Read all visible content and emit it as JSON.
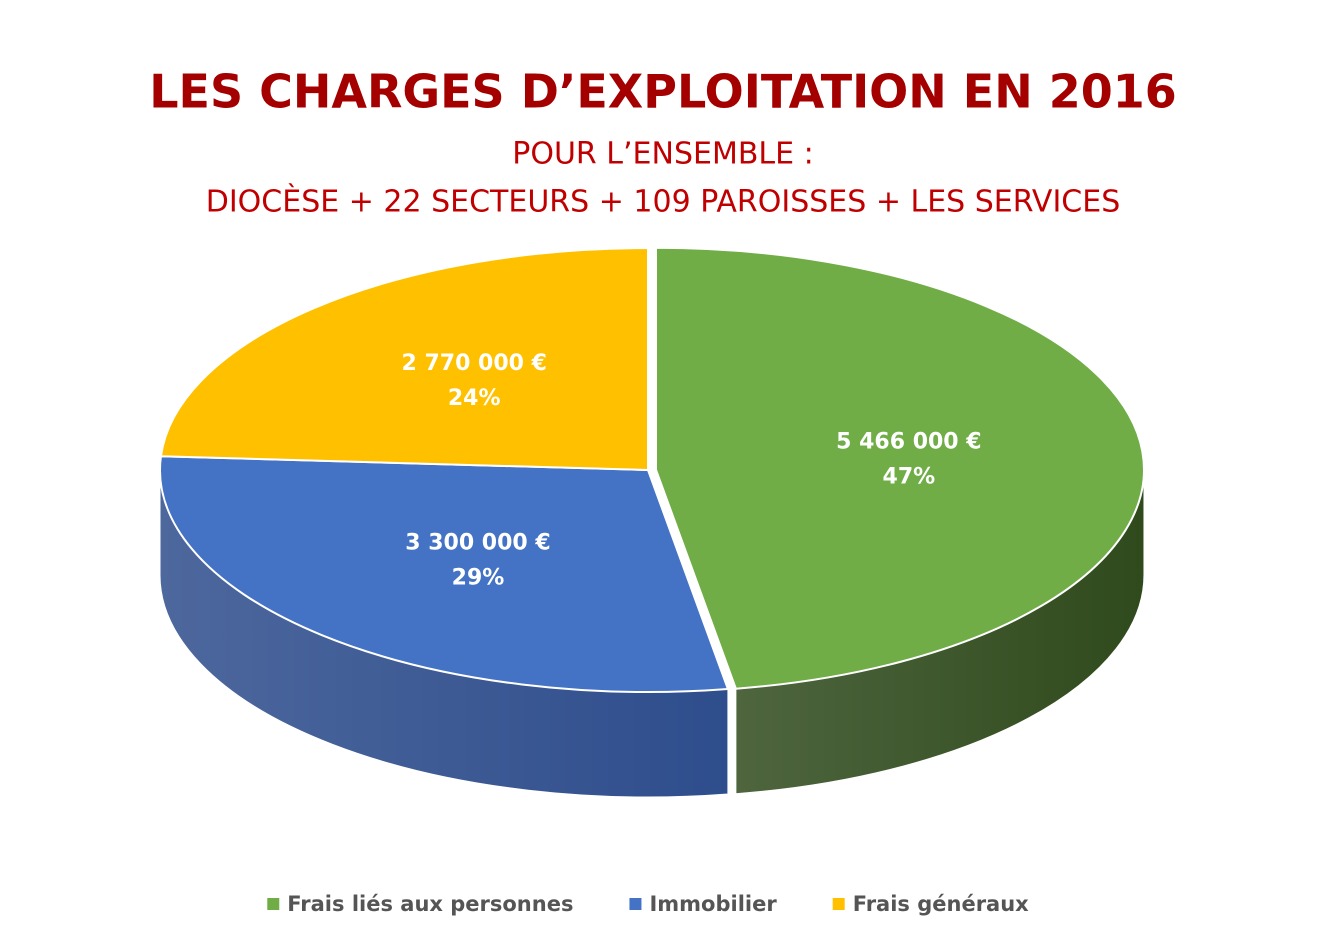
{
  "chart_data": {
    "type": "pie3d",
    "title": "LES CHARGES D’EXPLOITATION EN 2016",
    "subtitle": [
      "POUR L’ENSEMBLE :",
      "DIOCÈSE + 22 SECTEURS + 109 PAROISSES + LES SERVICES"
    ],
    "categories": [
      "Frais liés aux personnes",
      "Immobilier",
      "Frais généraux"
    ],
    "values": [
      5466000,
      3300000,
      2770000
    ],
    "value_labels": [
      "5 466 000 €",
      "3 300 000 €",
      "2 770 000 €"
    ],
    "percentages": [
      47,
      29,
      24
    ],
    "percentage_labels": [
      "47%",
      "29%",
      "24%"
    ],
    "colors": [
      "#70ad47",
      "#4472c4",
      "#ffc000"
    ],
    "side_colors": [
      "#2f4a1c",
      "#2e4d8c",
      "#b58800"
    ],
    "legend": "bottom"
  }
}
